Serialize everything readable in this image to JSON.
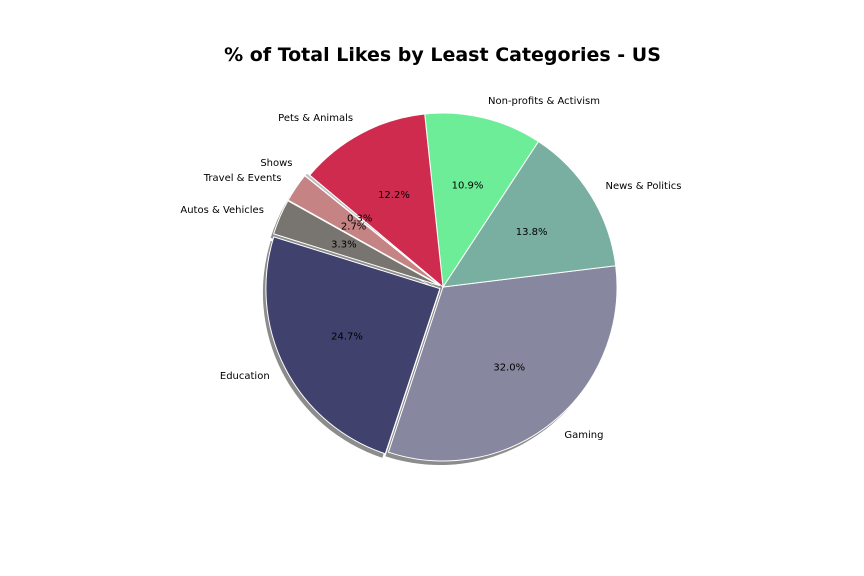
{
  "chart_data": {
    "type": "pie",
    "title": "% of Total Likes by Least Categories - US",
    "start_angle_deg": 140,
    "direction": "counterclockwise",
    "shadow": true,
    "slices": [
      {
        "label": "Shows",
        "value": 0.3,
        "pct_label": "0.3%",
        "color": "#c0c0c0",
        "explode": 0.02
      },
      {
        "label": "Travel & Events",
        "value": 2.7,
        "pct_label": "2.7%",
        "color": "#c58383",
        "explode": 0.02
      },
      {
        "label": "Autos & Vehicles",
        "value": 3.3,
        "pct_label": "3.3%",
        "color": "#787470",
        "explode": 0.02
      },
      {
        "label": "Education",
        "value": 24.7,
        "pct_label": "24.7%",
        "color": "#41416d",
        "explode": 0.02
      },
      {
        "label": "Gaming",
        "value": 32.0,
        "pct_label": "32.0%",
        "color": "#8787a0",
        "explode": 0.0
      },
      {
        "label": "News & Politics",
        "value": 13.8,
        "pct_label": "13.8%",
        "color": "#78afa0",
        "explode": 0.0
      },
      {
        "label": "Non-profits & Activism",
        "value": 10.9,
        "pct_label": "10.9%",
        "color": "#6eed98",
        "explode": 0.0
      },
      {
        "label": "Pets & Animals",
        "value": 12.2,
        "pct_label": "12.2%",
        "color": "#cf2b4f",
        "explode": 0.0
      }
    ]
  }
}
